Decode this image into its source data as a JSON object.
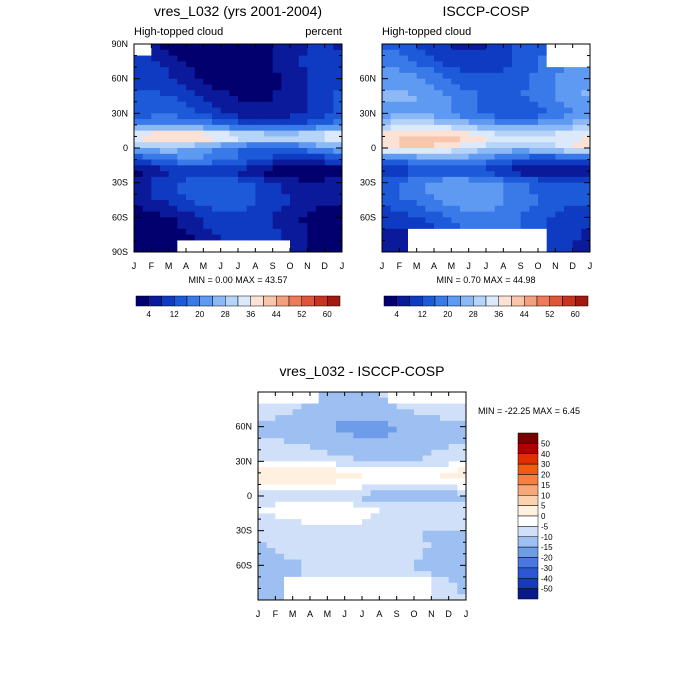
{
  "chart_data": [
    {
      "type": "heatmap",
      "title": "vres_L032 (yrs 2001-2004)",
      "subtitle_left": "High-topped cloud",
      "subtitle_right": "percent",
      "x_ticks": [
        "J",
        "F",
        "M",
        "A",
        "M",
        "J",
        "J",
        "A",
        "S",
        "O",
        "N",
        "D",
        "J"
      ],
      "y_ticks": [
        "90N",
        "60N",
        "30N",
        "0",
        "30S",
        "60S",
        "90S"
      ],
      "y_range": [
        -90,
        90
      ],
      "stats": "MIN =   0.00 MAX =  43.57",
      "profile_lat": [
        -90,
        -75,
        -60,
        -45,
        -30,
        -20,
        -10,
        0,
        10,
        20,
        30,
        45,
        60,
        75,
        90
      ],
      "profile_val": [
        3,
        5,
        6,
        10,
        10,
        4,
        14,
        20,
        38,
        16,
        10,
        8,
        6,
        5,
        3
      ],
      "missing": [
        {
          "lat_min": -90,
          "lat_max": -78,
          "month_min": 2.3,
          "month_max": 9.2
        },
        {
          "lat_min": 80,
          "lat_max": 90,
          "month_min": 0,
          "month_max": 0.8
        }
      ]
    },
    {
      "type": "heatmap",
      "title": "ISCCP-COSP",
      "subtitle_left": "High-topped cloud",
      "subtitle_right": "",
      "x_ticks": [
        "J",
        "F",
        "M",
        "A",
        "M",
        "J",
        "J",
        "A",
        "S",
        "O",
        "N",
        "D",
        "J"
      ],
      "y_ticks": [
        "",
        "60N",
        "30N",
        "0",
        "30S",
        "60S",
        ""
      ],
      "y_range": [
        -90,
        90
      ],
      "stats": "MIN =   0.70 MAX =  44.98",
      "profile_lat": [
        -90,
        -75,
        -60,
        -45,
        -30,
        -20,
        -10,
        0,
        10,
        20,
        30,
        45,
        60,
        75,
        90
      ],
      "profile_val": [
        10,
        12,
        14,
        18,
        18,
        8,
        16,
        34,
        38,
        26,
        18,
        20,
        18,
        14,
        12
      ],
      "missing": [
        {
          "lat_min": -90,
          "lat_max": -70,
          "month_min": 1.5,
          "month_max": 9.5
        },
        {
          "lat_min": 70,
          "lat_max": 90,
          "month_min": 9.5,
          "month_max": 12
        }
      ]
    },
    {
      "type": "heatmap",
      "title": "vres_L032 - ISCCP-COSP",
      "x_ticks": [
        "J",
        "F",
        "M",
        "A",
        "M",
        "J",
        "J",
        "A",
        "S",
        "O",
        "N",
        "D",
        "J"
      ],
      "y_ticks": [
        "60N",
        "30N",
        "0",
        "30S",
        "60S"
      ],
      "y_range": [
        -90,
        90
      ],
      "stats": "MIN = -22.25 MAX =   6.45",
      "profile_lat": [
        -90,
        -75,
        -60,
        -45,
        -30,
        -20,
        -10,
        0,
        10,
        20,
        30,
        45,
        60,
        75,
        90
      ],
      "profile_val": [
        -8,
        -8,
        -10,
        -8,
        -8,
        -6,
        -4,
        -12,
        -2,
        2,
        -8,
        -12,
        -14,
        -10,
        -9
      ],
      "missing": [
        {
          "lat_min": -90,
          "lat_max": -68,
          "month_min": 1.5,
          "month_max": 9.8
        },
        {
          "lat_min": 80,
          "lat_max": 90,
          "month_min": 0,
          "month_max": 3.5
        },
        {
          "lat_min": 80,
          "lat_max": 90,
          "month_min": 7.5,
          "month_max": 12
        }
      ]
    }
  ],
  "colorbar_abs": {
    "labels": [
      "4",
      "12",
      "20",
      "28",
      "36",
      "44",
      "52",
      "60"
    ],
    "levels": [
      0,
      4,
      8,
      12,
      16,
      20,
      24,
      28,
      32,
      36,
      40,
      44,
      48,
      52,
      56,
      60,
      64
    ],
    "colors": [
      "#02006e",
      "#0a1a9a",
      "#0f3bc2",
      "#1d5ad9",
      "#3a7ae8",
      "#5f9af2",
      "#8db8f6",
      "#b6d3f8",
      "#dce9fb",
      "#fbe2d4",
      "#f8c6ad",
      "#f3a081",
      "#ee7a5a",
      "#e0543b",
      "#c8321f",
      "#a3180f"
    ]
  },
  "colorbar_diff": {
    "labels": [
      "50",
      "40",
      "30",
      "20",
      "15",
      "10",
      "5",
      "0",
      "-5",
      "-10",
      "-15",
      "-20",
      "-30",
      "-40",
      "-50"
    ],
    "colors": [
      "#7a0000",
      "#b00000",
      "#e03000",
      "#f25a10",
      "#f58040",
      "#f8a878",
      "#fbd2b0",
      "#fff0e0",
      "#ffffff",
      "#cfe0f8",
      "#9dbff2",
      "#6f9ce9",
      "#4a78e0",
      "#2b57d4",
      "#173bb8",
      "#0a1a8a"
    ]
  }
}
